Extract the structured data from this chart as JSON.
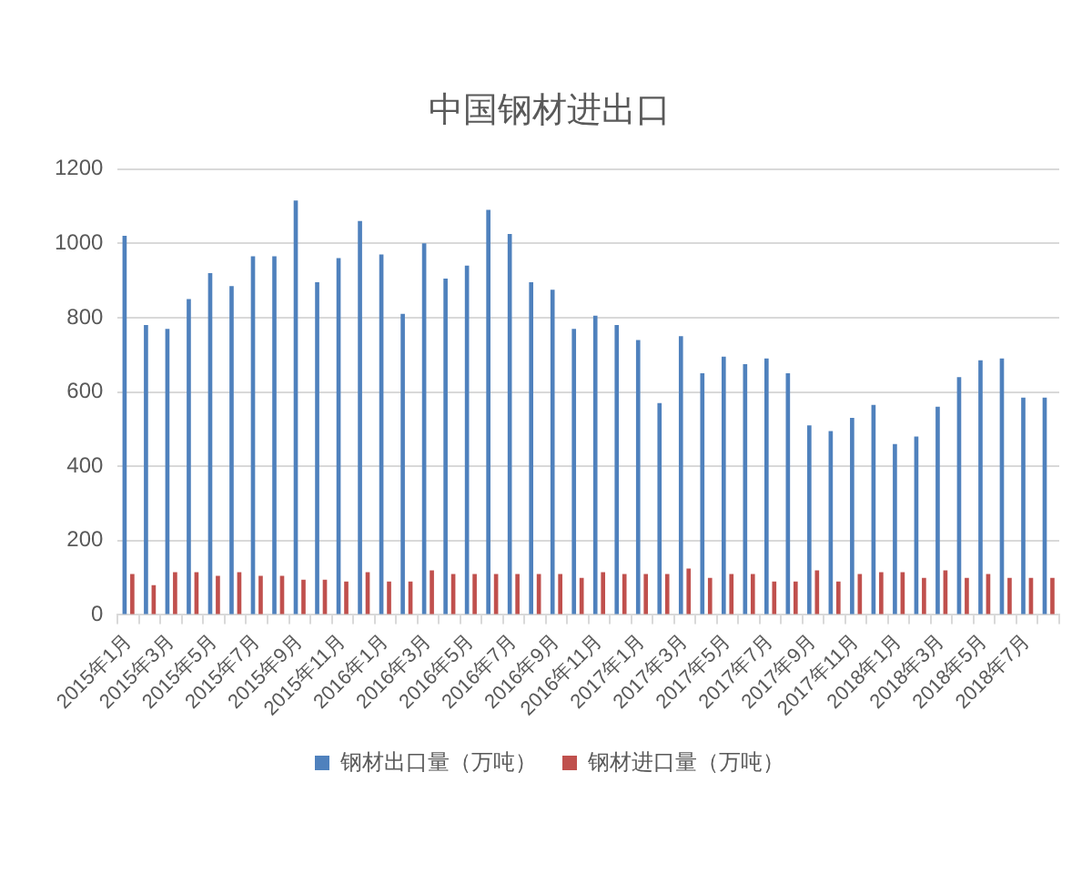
{
  "chart_data": {
    "type": "bar",
    "title": "中国钢材进出口",
    "categories": [
      "2015年1月",
      null,
      "2015年3月",
      null,
      "2015年5月",
      null,
      "2015年7月",
      null,
      "2015年9月",
      null,
      "2015年11月",
      null,
      "2016年1月",
      null,
      "2016年3月",
      null,
      "2016年5月",
      null,
      "2016年7月",
      null,
      "2016年9月",
      null,
      "2016年11月",
      null,
      "2017年1月",
      null,
      "2017年3月",
      null,
      "2017年5月",
      null,
      "2017年7月",
      null,
      "2017年9月",
      null,
      "2017年11月",
      null,
      "2018年1月",
      null,
      "2018年3月",
      null,
      "2018年5月",
      null,
      "2018年7月",
      null
    ],
    "series": [
      {
        "name": "钢材出口量（万吨）",
        "color": "#4f81bd",
        "values": [
          1020,
          780,
          770,
          850,
          920,
          885,
          965,
          965,
          1115,
          895,
          960,
          1060,
          970,
          810,
          1000,
          905,
          940,
          1090,
          1025,
          895,
          875,
          770,
          805,
          780,
          740,
          570,
          750,
          650,
          695,
          675,
          690,
          650,
          510,
          495,
          530,
          565,
          460,
          480,
          560,
          640,
          685,
          690,
          585,
          585
        ]
      },
      {
        "name": "钢材进口量（万吨）",
        "color": "#c0504d",
        "values": [
          110,
          80,
          115,
          115,
          105,
          115,
          105,
          105,
          95,
          95,
          90,
          115,
          90,
          90,
          120,
          110,
          110,
          110,
          110,
          110,
          110,
          100,
          115,
          110,
          110,
          110,
          125,
          100,
          110,
          110,
          90,
          90,
          120,
          90,
          110,
          115,
          115,
          100,
          120,
          100,
          110,
          100,
          100,
          100
        ]
      }
    ],
    "ylim": [
      0,
      1200
    ],
    "yticks": [
      0,
      200,
      400,
      600,
      800,
      1000,
      1200
    ],
    "grid": "y",
    "legend": "bottom"
  }
}
